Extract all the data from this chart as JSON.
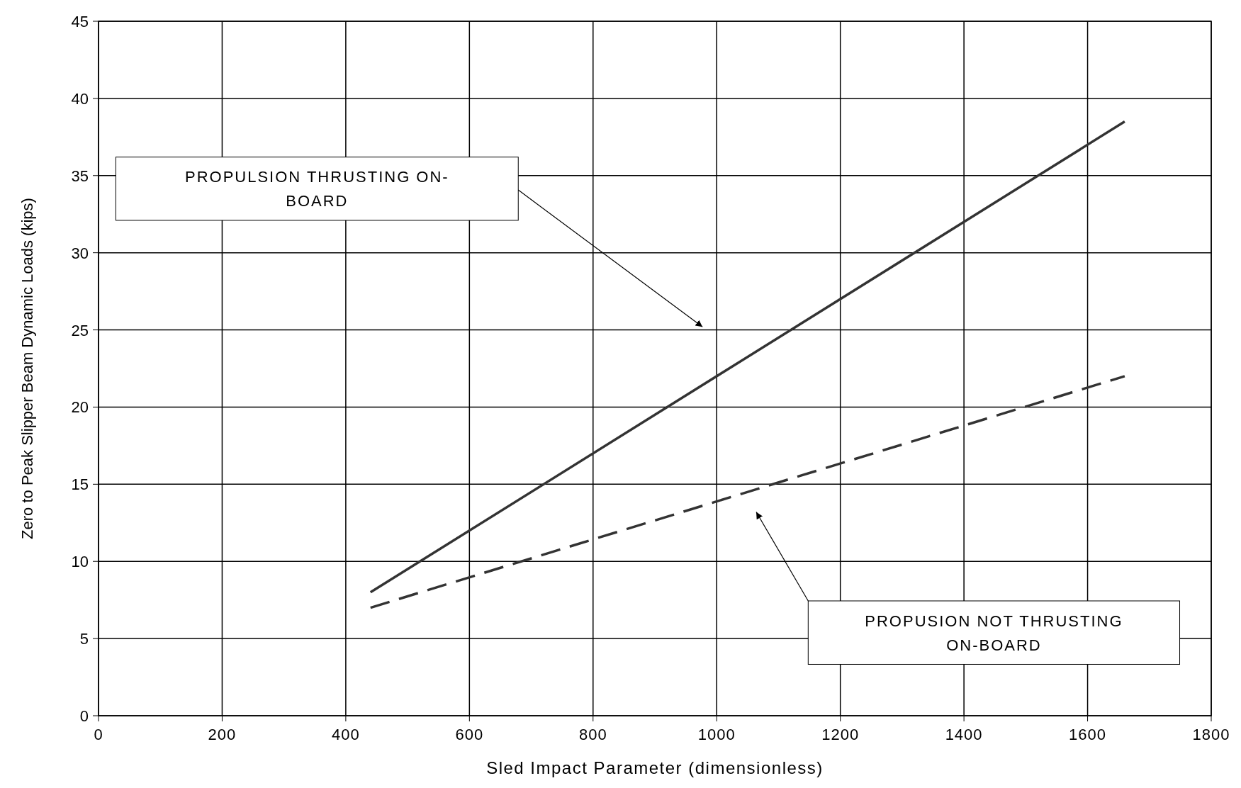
{
  "chart_data": {
    "type": "line",
    "xlabel": "Sled Impact Parameter (dimensionless)",
    "ylabel": "Zero to Peak Slipper Beam Dynamic Loads (kips)",
    "xlim": [
      0,
      1800
    ],
    "xticks": [
      0,
      200,
      400,
      600,
      800,
      1000,
      1200,
      1400,
      1600,
      1800
    ],
    "x": [
      440,
      1660
    ],
    "ylim": [
      0,
      45
    ],
    "yticks": [
      0,
      5,
      10,
      15,
      20,
      25,
      30,
      35,
      40,
      45
    ],
    "grid": true,
    "legend": false,
    "series": [
      {
        "values": [
          8,
          38.5
        ],
        "color": "#333333",
        "line_style": "solid"
      },
      {
        "values": [
          7,
          22
        ],
        "color": "#333333",
        "line_style": "dashed"
      }
    ],
    "annotations": [
      "PROPULSION THRUSTING ON-BOARD",
      "PROPUSION NOT THRUSTING ON-BOARD"
    ]
  }
}
